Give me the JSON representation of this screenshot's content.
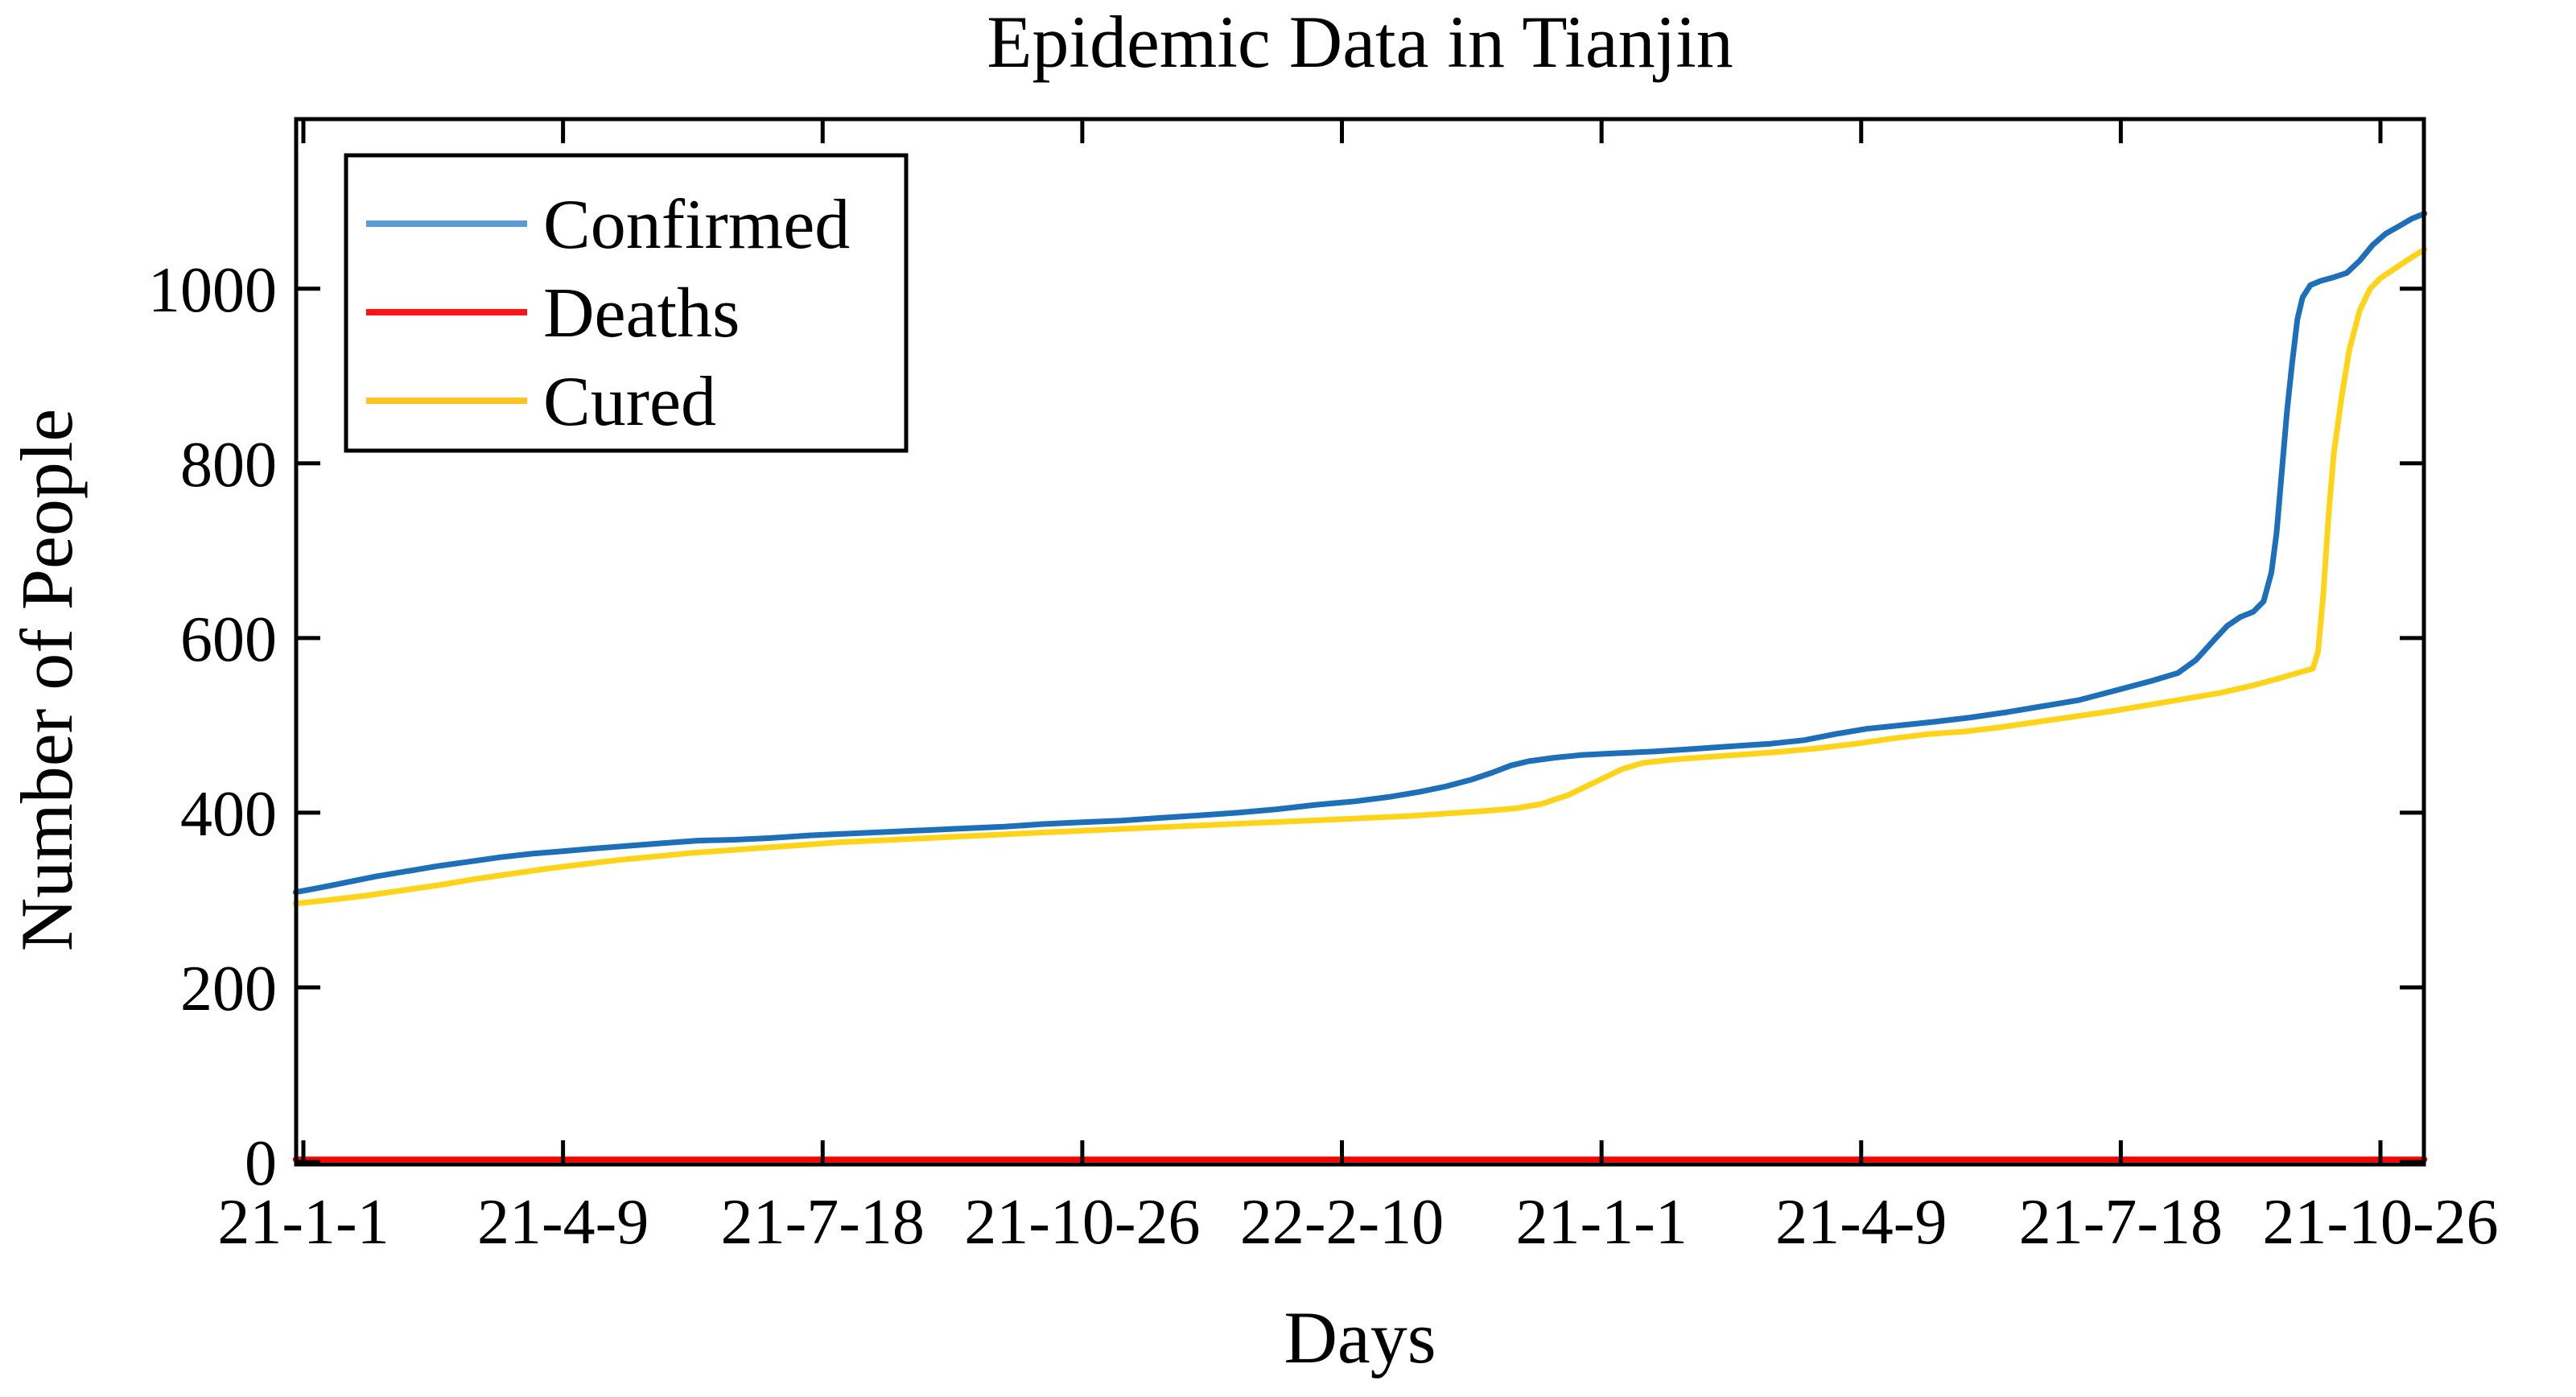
{
  "figure": {
    "title": "Epidemic Data in Tianjin",
    "xlabel": "Days",
    "ylabel": "Number of People",
    "background_color": "#ffffff",
    "axis_color": "#000000"
  },
  "chart_data": {
    "type": "line",
    "title": "Epidemic Data in Tianjin",
    "xlabel": "Days",
    "ylabel": "Number of People",
    "grid": false,
    "legend_position": "upper left",
    "x_tick_labels": [
      "21-1-1",
      "21-4-9",
      "21-7-18",
      "21-10-26",
      "22-2-10",
      "21-1-1",
      "21-4-9",
      "21-7-18",
      "21-10-26"
    ],
    "x_tick_positions_days": [
      0,
      100,
      200,
      300,
      400,
      500,
      600,
      700,
      800
    ],
    "xlim_days": [
      -3,
      817
    ],
    "y_ticks": [
      0,
      200,
      400,
      600,
      800,
      1000
    ],
    "y_tick_labels": [
      "0",
      "200",
      "400",
      "600",
      "800",
      "1000"
    ],
    "ylim": [
      0,
      1192
    ],
    "series": [
      {
        "name": "Confirmed",
        "color": "#1E6FBA",
        "legend_color": "#5B9BD5",
        "points": [
          [
            -3,
            309
          ],
          [
            8,
            315
          ],
          [
            18,
            321
          ],
          [
            28,
            327
          ],
          [
            40,
            333
          ],
          [
            52,
            339
          ],
          [
            64,
            344
          ],
          [
            76,
            349
          ],
          [
            88,
            353
          ],
          [
            100,
            356
          ],
          [
            112,
            359
          ],
          [
            125,
            362
          ],
          [
            138,
            365
          ],
          [
            152,
            368
          ],
          [
            166,
            369
          ],
          [
            180,
            371
          ],
          [
            195,
            374
          ],
          [
            210,
            376
          ],
          [
            225,
            378
          ],
          [
            240,
            380
          ],
          [
            255,
            382
          ],
          [
            270,
            384
          ],
          [
            285,
            387
          ],
          [
            300,
            389
          ],
          [
            315,
            391
          ],
          [
            330,
            394
          ],
          [
            345,
            397
          ],
          [
            360,
            400
          ],
          [
            375,
            404
          ],
          [
            390,
            409
          ],
          [
            405,
            413
          ],
          [
            418,
            418
          ],
          [
            430,
            424
          ],
          [
            440,
            430
          ],
          [
            450,
            438
          ],
          [
            458,
            446
          ],
          [
            465,
            454
          ],
          [
            472,
            459
          ],
          [
            482,
            463
          ],
          [
            492,
            466
          ],
          [
            505,
            468
          ],
          [
            520,
            470
          ],
          [
            535,
            473
          ],
          [
            550,
            476
          ],
          [
            565,
            479
          ],
          [
            578,
            483
          ],
          [
            590,
            490
          ],
          [
            602,
            496
          ],
          [
            615,
            500
          ],
          [
            628,
            504
          ],
          [
            642,
            509
          ],
          [
            656,
            515
          ],
          [
            670,
            522
          ],
          [
            684,
            529
          ],
          [
            698,
            540
          ],
          [
            712,
            551
          ],
          [
            722,
            560
          ],
          [
            729,
            575
          ],
          [
            736,
            598
          ],
          [
            741,
            614
          ],
          [
            746,
            624
          ],
          [
            751,
            630
          ],
          [
            755,
            642
          ],
          [
            758,
            675
          ],
          [
            760,
            720
          ],
          [
            762,
            790
          ],
          [
            764,
            860
          ],
          [
            766,
            915
          ],
          [
            768,
            965
          ],
          [
            770,
            990
          ],
          [
            773,
            1004
          ],
          [
            777,
            1009
          ],
          [
            782,
            1013
          ],
          [
            787,
            1018
          ],
          [
            792,
            1032
          ],
          [
            797,
            1050
          ],
          [
            802,
            1063
          ],
          [
            808,
            1073
          ],
          [
            812,
            1080
          ],
          [
            817,
            1086
          ]
        ]
      },
      {
        "name": "Deaths",
        "color": "#FF0000",
        "legend_color": "#FF1414",
        "points": [
          [
            -3,
            3
          ],
          [
            200,
            3
          ],
          [
            400,
            3
          ],
          [
            600,
            3
          ],
          [
            817,
            3
          ]
        ]
      },
      {
        "name": "Cured",
        "color": "#FFD318",
        "legend_color": "#FFC324",
        "points": [
          [
            -3,
            296
          ],
          [
            10,
            300
          ],
          [
            24,
            305
          ],
          [
            38,
            311
          ],
          [
            52,
            317
          ],
          [
            66,
            324
          ],
          [
            80,
            330
          ],
          [
            94,
            336
          ],
          [
            108,
            341
          ],
          [
            122,
            346
          ],
          [
            136,
            350
          ],
          [
            150,
            354
          ],
          [
            164,
            357
          ],
          [
            178,
            360
          ],
          [
            192,
            363
          ],
          [
            206,
            366
          ],
          [
            220,
            368
          ],
          [
            234,
            370
          ],
          [
            248,
            372
          ],
          [
            262,
            374
          ],
          [
            276,
            376
          ],
          [
            290,
            378
          ],
          [
            305,
            380
          ],
          [
            320,
            382
          ],
          [
            335,
            384
          ],
          [
            350,
            386
          ],
          [
            365,
            388
          ],
          [
            380,
            390
          ],
          [
            395,
            392
          ],
          [
            410,
            394
          ],
          [
            425,
            396
          ],
          [
            440,
            399
          ],
          [
            455,
            402
          ],
          [
            467,
            405
          ],
          [
            477,
            410
          ],
          [
            487,
            420
          ],
          [
            494,
            430
          ],
          [
            501,
            440
          ],
          [
            508,
            450
          ],
          [
            516,
            457
          ],
          [
            528,
            461
          ],
          [
            542,
            464
          ],
          [
            556,
            467
          ],
          [
            570,
            470
          ],
          [
            584,
            474
          ],
          [
            598,
            479
          ],
          [
            612,
            485
          ],
          [
            626,
            490
          ],
          [
            640,
            493
          ],
          [
            654,
            498
          ],
          [
            668,
            504
          ],
          [
            682,
            510
          ],
          [
            696,
            516
          ],
          [
            710,
            523
          ],
          [
            724,
            530
          ],
          [
            738,
            537
          ],
          [
            750,
            545
          ],
          [
            760,
            553
          ],
          [
            768,
            560
          ],
          [
            774,
            565
          ],
          [
            776,
            585
          ],
          [
            778,
            650
          ],
          [
            780,
            740
          ],
          [
            782,
            810
          ],
          [
            785,
            875
          ],
          [
            788,
            930
          ],
          [
            792,
            975
          ],
          [
            796,
            1000
          ],
          [
            800,
            1012
          ],
          [
            806,
            1024
          ],
          [
            811,
            1034
          ],
          [
            817,
            1045
          ]
        ]
      }
    ]
  }
}
